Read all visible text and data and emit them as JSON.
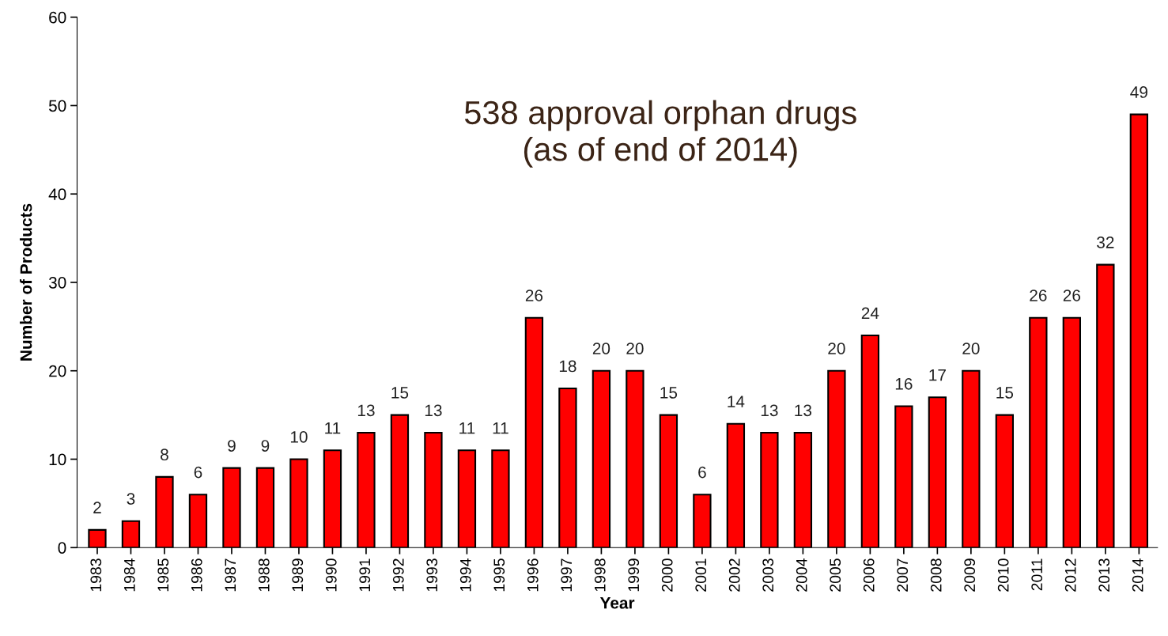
{
  "chart_data": {
    "type": "bar",
    "xlabel": "Year",
    "ylabel": "Number of Products",
    "categories": [
      "1983",
      "1984",
      "1985",
      "1986",
      "1987",
      "1988",
      "1989",
      "1990",
      "1991",
      "1992",
      "1993",
      "1994",
      "1995",
      "1996",
      "1997",
      "1998",
      "1999",
      "2000",
      "2001",
      "2002",
      "2003",
      "2004",
      "2005",
      "2006",
      "2007",
      "2008",
      "2009",
      "2010",
      "2011",
      "2012",
      "2013",
      "2014"
    ],
    "values": [
      2,
      3,
      8,
      6,
      9,
      9,
      10,
      11,
      13,
      15,
      13,
      11,
      11,
      26,
      18,
      20,
      20,
      15,
      6,
      14,
      13,
      13,
      20,
      24,
      16,
      17,
      20,
      15,
      26,
      26,
      32,
      49
    ],
    "color": "#ff0000",
    "ylim": [
      0,
      60
    ],
    "yticks": [
      0,
      10,
      20,
      30,
      40,
      50,
      60
    ],
    "data_labels": true,
    "grid": false,
    "legend": false,
    "annotations": [
      "538 approval orphan drugs\n(as of end of 2014)"
    ]
  }
}
